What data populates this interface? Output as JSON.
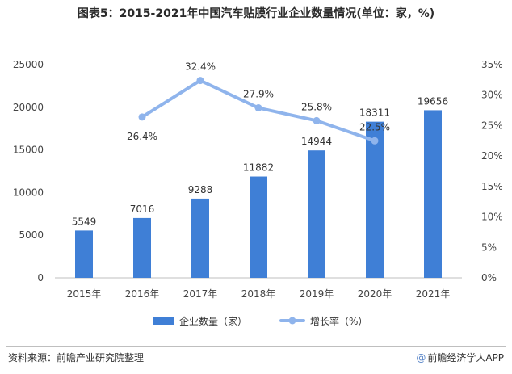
{
  "chart_data": {
    "type": "bar",
    "title": "图表5：2015-2021年中国汽车贴膜行业企业数量情况(单位：家，%)",
    "categories": [
      "2015年",
      "2016年",
      "2017年",
      "2018年",
      "2019年",
      "2020年",
      "2021年"
    ],
    "series": [
      {
        "name": "企业数量（家）",
        "type": "bar",
        "axis": "left",
        "values": [
          5549,
          7016,
          9288,
          11882,
          14944,
          18311,
          19656
        ],
        "labels": [
          "5549",
          "7016",
          "9288",
          "11882",
          "14944",
          "18311",
          "19656"
        ],
        "color": "#3f7fd6"
      },
      {
        "name": "增长率（%）",
        "type": "line",
        "axis": "right",
        "values": [
          null,
          26.4,
          32.4,
          27.9,
          25.8,
          22.5,
          null
        ],
        "labels": [
          "",
          "26.4%",
          "32.4%",
          "27.9%",
          "25.8%",
          "22.5%",
          ""
        ],
        "color": "#8fb4ec"
      }
    ],
    "y_left": {
      "min": 0,
      "max": 25000,
      "step": 5000,
      "tick_labels": [
        "0",
        "5000",
        "10000",
        "15000",
        "20000",
        "25000"
      ]
    },
    "y_right": {
      "min": 0,
      "max": 35,
      "step": 5,
      "tick_labels": [
        "0%",
        "5%",
        "10%",
        "15%",
        "20%",
        "25%",
        "30%",
        "35%"
      ]
    },
    "grid": false,
    "legend_position": "bottom"
  },
  "footer": {
    "source": "资料来源：前瞻产业研究院整理",
    "brand": "前瞻经济学人APP",
    "brand_icon": "at-icon"
  }
}
